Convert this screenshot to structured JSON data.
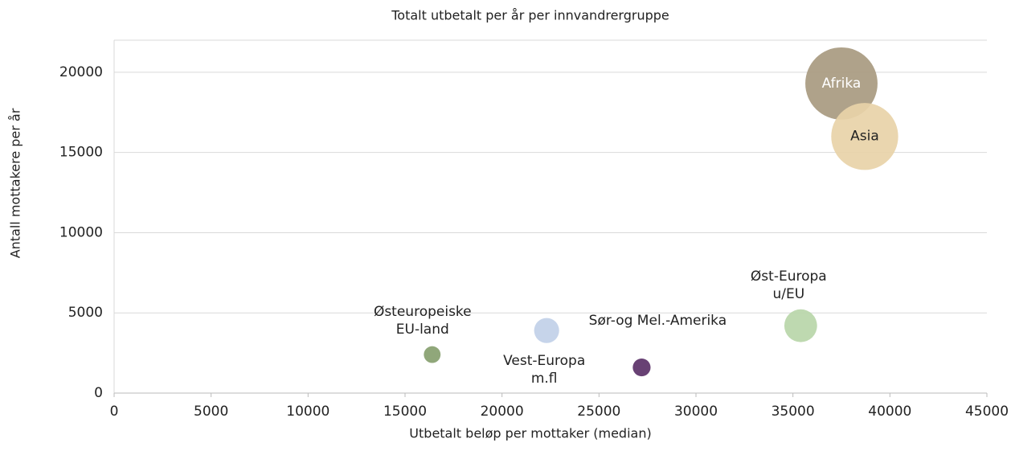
{
  "chart_data": {
    "type": "bubble",
    "title": "Totalt utbetalt per år per innvandrergruppe",
    "x_label": "Utbetalt beløp per mottaker (median)",
    "y_label": "Antall mottakere per år",
    "series": [
      {
        "name": "Afrika",
        "color": "#a89a80",
        "x": [
          37500
        ],
        "values": [
          19300
        ],
        "sizes": [
          724
        ]
      },
      {
        "name": "Asia",
        "color": "#e8d2a8",
        "x": [
          38700
        ],
        "values": [
          16000
        ],
        "sizes": [
          622
        ]
      },
      {
        "name": "Øst-Europa\nu/EU",
        "color": "#b9d6a9",
        "x": [
          35400
        ],
        "values": [
          4200
        ],
        "sizes": [
          149
        ]
      },
      {
        "name": "Østeuropeiske\nEU-land",
        "color": "#87a06f",
        "x": [
          16400
        ],
        "values": [
          2400
        ],
        "sizes": [
          39
        ]
      },
      {
        "name": "Vest-Europa\nm.fl",
        "color": "#c1d0e8",
        "x": [
          22300
        ],
        "values": [
          3900
        ],
        "sizes": [
          87
        ]
      },
      {
        "name": "Sør-og Mel.-Amerika",
        "color": "#5b3168",
        "x": [
          27200
        ],
        "values": [
          1600
        ],
        "sizes": [
          44
        ]
      }
    ],
    "xlim": [
      0,
      45000
    ],
    "xticks": [
      0,
      5000,
      10000,
      15000,
      20000,
      25000,
      30000,
      35000,
      40000,
      45000
    ],
    "ylim": [
      0,
      22000
    ],
    "yticks": [
      0,
      5000,
      10000,
      15000,
      20000
    ],
    "grid": true
  }
}
